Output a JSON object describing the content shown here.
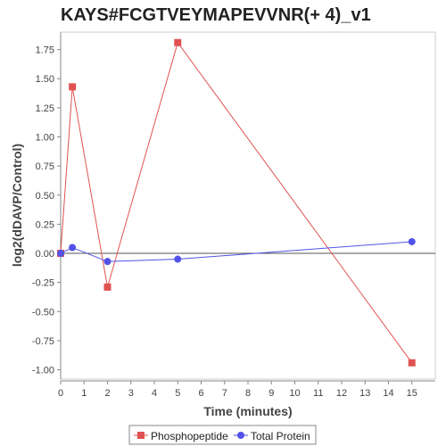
{
  "chart_data": {
    "type": "line",
    "title": "KAYS#FCGTVEYMAPEVVNR(+ 4)_v1",
    "xlabel": "Time (minutes)",
    "ylabel": "log2(dDAVP/Control)",
    "xlim": [
      0,
      16
    ],
    "ylim": [
      -1.08,
      1.9
    ],
    "xticks": [
      0,
      1,
      2,
      3,
      4,
      5,
      6,
      7,
      8,
      9,
      10,
      11,
      12,
      13,
      14,
      15
    ],
    "yticks": [
      -1.0,
      -0.75,
      -0.5,
      -0.25,
      0.0,
      0.25,
      0.5,
      0.75,
      1.0,
      1.25,
      1.5,
      1.75
    ],
    "ytick_labels": [
      "-1.00",
      "-0.75",
      "-0.50",
      "-0.25",
      "0.00",
      "0.25",
      "0.50",
      "0.75",
      "1.00",
      "1.25",
      "1.50",
      "1.75"
    ],
    "zero_line": true,
    "grid": false,
    "legend_position": "bottom-center",
    "series": [
      {
        "name": "Phosphopeptide",
        "color": "#e05252",
        "marker": "square",
        "x": [
          0,
          0.5,
          2,
          5,
          15
        ],
        "y": [
          0.0,
          1.43,
          -0.29,
          1.81,
          -0.94
        ]
      },
      {
        "name": "Total Protein",
        "color": "#5252e8",
        "marker": "circle",
        "x": [
          0,
          0.5,
          2,
          5,
          15
        ],
        "y": [
          0.0,
          0.05,
          -0.07,
          -0.05,
          0.1
        ]
      }
    ]
  }
}
